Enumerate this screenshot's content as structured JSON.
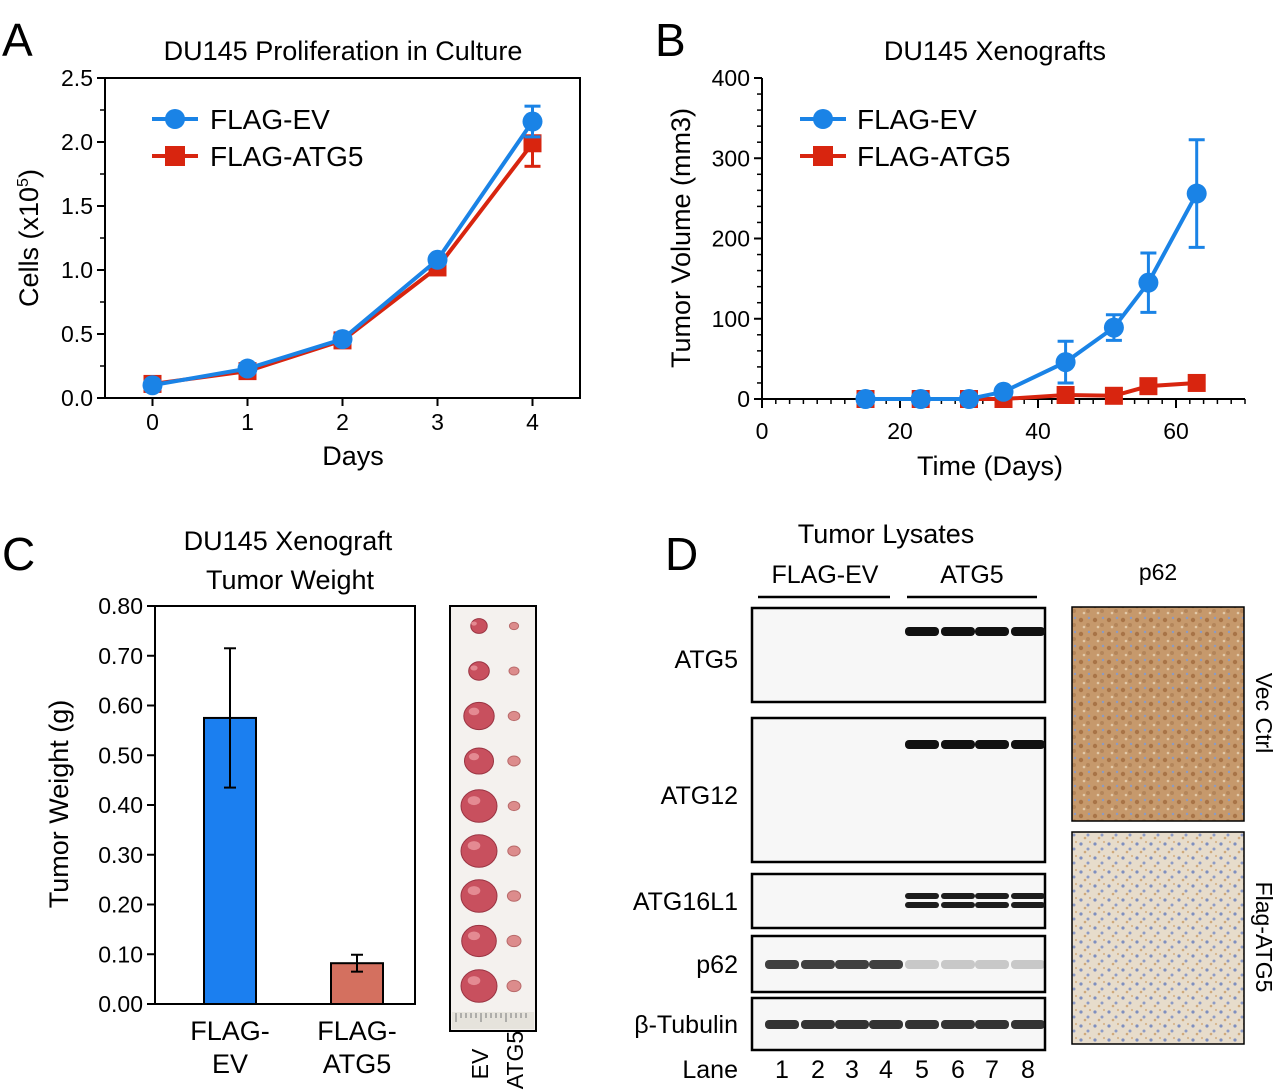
{
  "colors": {
    "ev": "#1a83e6",
    "atg5": "#d8250f",
    "bar_ev": "#1b7ff0",
    "bar_atg5": "#d4705f"
  },
  "panel_a": {
    "letter": "A",
    "chart_data": {
      "type": "line",
      "title": "DU145 Proliferation in Culture",
      "xlabel": "Days",
      "ylabel": "Cells (x10",
      "ylabel_sup": "5",
      "ylabel_close": ")",
      "xlim": [
        -0.5,
        4.5
      ],
      "ylim": [
        0,
        2.5
      ],
      "xticks": [
        0,
        1,
        2,
        3,
        4
      ],
      "yticks": [
        "0.0",
        "0.5",
        "1.0",
        "1.5",
        "2.0",
        "2.5"
      ],
      "legend_position": "top-left",
      "x": [
        0,
        1,
        2,
        3,
        4
      ],
      "series": [
        {
          "name": "FLAG-EV",
          "marker": "circle",
          "color": "#1a83e6",
          "values": [
            0.1,
            0.23,
            0.46,
            1.08,
            2.16
          ],
          "errors": [
            0.02,
            0.02,
            0.02,
            0.03,
            0.12
          ]
        },
        {
          "name": "FLAG-ATG5",
          "marker": "square",
          "color": "#d8250f",
          "values": [
            0.11,
            0.21,
            0.45,
            1.02,
            1.99
          ],
          "errors": [
            0.02,
            0.02,
            0.02,
            0.03,
            0.18
          ]
        }
      ]
    }
  },
  "panel_b": {
    "letter": "B",
    "chart_data": {
      "type": "line",
      "title": "DU145 Xenografts",
      "xlabel": "Time (Days)",
      "ylabel": "Tumor Volume (mm3)",
      "xlim": [
        0,
        70
      ],
      "ylim": [
        0,
        400
      ],
      "xticks": [
        0,
        20,
        40,
        60
      ],
      "yticks": [
        0,
        100,
        200,
        300,
        400
      ],
      "legend_position": "top-left",
      "series": [
        {
          "name": "FLAG-EV",
          "marker": "circle",
          "color": "#1a83e6",
          "x": [
            15,
            23,
            30,
            35,
            44,
            51,
            56,
            63
          ],
          "values": [
            0,
            0,
            0,
            9,
            46,
            89,
            145,
            256
          ],
          "errors": [
            0,
            0,
            0,
            3,
            26,
            16,
            37,
            67
          ]
        },
        {
          "name": "FLAG-ATG5",
          "marker": "square",
          "color": "#d8250f",
          "x": [
            15,
            23,
            30,
            35,
            44,
            51,
            56,
            63
          ],
          "values": [
            0,
            0,
            0,
            0,
            5,
            4,
            16,
            20
          ],
          "errors": [
            0,
            0,
            0,
            0,
            3,
            2,
            5,
            4
          ]
        }
      ]
    }
  },
  "panel_c": {
    "letter": "C",
    "chart_data": {
      "type": "bar",
      "title_lines": [
        "DU145 Xenograft",
        "Tumor Weight"
      ],
      "ylabel": "Tumor Weight (g)",
      "ylim": [
        0,
        0.8
      ],
      "yticks": [
        "0.00",
        "0.10",
        "0.20",
        "0.30",
        "0.40",
        "0.50",
        "0.60",
        "0.70",
        "0.80"
      ],
      "categories": [
        [
          "FLAG-",
          "EV"
        ],
        [
          "FLAG-",
          "ATG5"
        ]
      ],
      "values": [
        0.575,
        0.082
      ],
      "errors": [
        0.14,
        0.017
      ],
      "colors": [
        "#1b7ff0",
        "#d4705f"
      ]
    },
    "photo_labels": [
      "EV",
      "ATG5"
    ],
    "photo_rows": [
      {
        "ev": 0.3,
        "atg5": 0.2
      },
      {
        "ev": 0.45,
        "atg5": 0.25
      },
      {
        "ev": 0.8,
        "atg5": 0.35
      },
      {
        "ev": 0.75,
        "atg5": 0.4
      },
      {
        "ev": 1.0,
        "atg5": 0.35
      },
      {
        "ev": 1.0,
        "atg5": 0.4
      },
      {
        "ev": 1.0,
        "atg5": 0.45
      },
      {
        "ev": 0.95,
        "atg5": 0.5
      },
      {
        "ev": 1.0,
        "atg5": 0.5
      }
    ]
  },
  "panel_d": {
    "letter": "D",
    "header": "Tumor Lysates",
    "group_labels": [
      "FLAG-EV",
      "ATG5"
    ],
    "blots": [
      {
        "label": "ATG5",
        "ev_intensity": 0,
        "atg5_intensity": 1,
        "double": false
      },
      {
        "label": "ATG12",
        "ev_intensity": 0,
        "atg5_intensity": 1,
        "double": false
      },
      {
        "label": "ATG16L1",
        "ev_intensity": 0,
        "atg5_intensity": 0.95,
        "double": true
      },
      {
        "label": "p62",
        "ev_intensity": 0.8,
        "atg5_intensity": 0.2,
        "double": false
      },
      {
        "label": "β-Tubulin",
        "ev_intensity": 0.85,
        "atg5_intensity": 0.85,
        "double": false
      }
    ],
    "lane_label": "Lane",
    "lanes": [
      "1",
      "2",
      "3",
      "4",
      "5",
      "6",
      "7",
      "8"
    ],
    "ihc_title": "p62",
    "ihc_labels": [
      "Vec Ctrl",
      "Flag-ATG5"
    ]
  }
}
